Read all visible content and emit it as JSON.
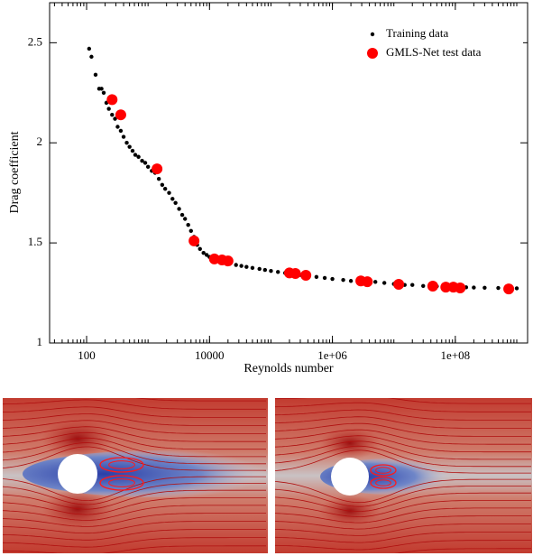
{
  "chart_data": {
    "type": "scatter",
    "xlabel": "Reynolds number",
    "ylabel": "Drag coefficient",
    "xscale": "log",
    "xlim": [
      25,
      1500000000
    ],
    "ylim": [
      1,
      2.7
    ],
    "xticks": [
      100,
      10000,
      {
        "value": 1000000,
        "label": "1e+06"
      },
      {
        "value": 100000000,
        "label": "1e+08"
      }
    ],
    "yticks": [
      1,
      1.5,
      2,
      2.5
    ],
    "minor_ticks": true,
    "grid": false,
    "legend": "top-right",
    "series": [
      {
        "name": "Training data",
        "color": "#000000",
        "x": [
          110,
          120,
          140,
          160,
          175,
          190,
          210,
          230,
          260,
          290,
          320,
          360,
          400,
          450,
          500,
          560,
          620,
          700,
          800,
          900,
          1000,
          1150,
          1300,
          1500,
          1700,
          1900,
          2200,
          2500,
          2800,
          3200,
          3600,
          4000,
          4500,
          5000,
          5600,
          6300,
          7000,
          8000,
          9000,
          10000,
          12000,
          15000,
          18000,
          22000,
          27000,
          33000,
          40000,
          50000,
          65000,
          80000,
          100000,
          130000,
          170000,
          220000,
          300000,
          400000,
          550000,
          750000,
          1000000,
          1500000,
          2000000,
          3000000,
          5000000,
          7000000,
          10000000,
          15000000,
          20000000,
          30000000,
          50000000,
          70000000,
          100000000,
          150000000,
          200000000,
          300000000,
          500000000,
          700000000,
          1000000000
        ],
        "values": [
          2.47,
          2.43,
          2.34,
          2.27,
          2.27,
          2.25,
          2.2,
          2.17,
          2.14,
          2.12,
          2.08,
          2.06,
          2.03,
          2.0,
          1.98,
          1.96,
          1.94,
          1.93,
          1.91,
          1.9,
          1.88,
          1.86,
          1.85,
          1.82,
          1.79,
          1.77,
          1.75,
          1.72,
          1.7,
          1.67,
          1.64,
          1.62,
          1.59,
          1.56,
          1.53,
          1.49,
          1.47,
          1.45,
          1.44,
          1.43,
          1.42,
          1.41,
          1.405,
          1.4,
          1.39,
          1.385,
          1.38,
          1.375,
          1.37,
          1.365,
          1.36,
          1.355,
          1.35,
          1.345,
          1.34,
          1.335,
          1.33,
          1.325,
          1.32,
          1.315,
          1.31,
          1.31,
          1.305,
          1.3,
          1.295,
          1.29,
          1.29,
          1.285,
          1.283,
          1.28,
          1.28,
          1.278,
          1.277,
          1.276,
          1.275,
          1.274,
          1.273
        ]
      },
      {
        "name": "GMLS-Net test data",
        "color": "#ff0000",
        "x": [
          260,
          360,
          1400,
          5600,
          12000,
          16000,
          20000,
          200000,
          250000,
          370000,
          2900000,
          3700000,
          12000000,
          43000000,
          70000000,
          93000000,
          120000000,
          740000000
        ],
        "values": [
          2.216,
          2.14,
          1.87,
          1.51,
          1.42,
          1.415,
          1.41,
          1.35,
          1.347,
          1.338,
          1.31,
          1.306,
          1.293,
          1.284,
          1.279,
          1.279,
          1.275,
          1.27
        ]
      }
    ]
  }
}
